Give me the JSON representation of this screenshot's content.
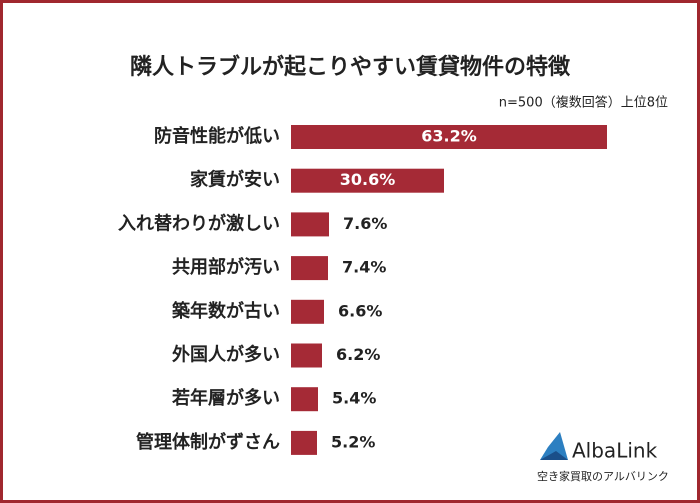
{
  "chart_data": {
    "type": "bar",
    "orientation": "horizontal",
    "title": "隣人トラブルが起こりやすい賃貸物件の特徴",
    "subtitle": "n=500（複数回答）上位8位",
    "categories": [
      "防音性能が低い",
      "家賃が安い",
      "入れ替わりが激しい",
      "共用部が汚い",
      "築年数が古い",
      "外国人が多い",
      "若年層が多い",
      "管理体制がずさん"
    ],
    "values": [
      63.2,
      30.6,
      7.6,
      7.4,
      6.6,
      6.2,
      5.4,
      5.2
    ],
    "value_labels": [
      "63.2%",
      "30.6%",
      "7.6%",
      "7.4%",
      "6.6%",
      "6.2%",
      "5.4%",
      "5.2%"
    ],
    "color": "#a52a36"
  },
  "logo": {
    "name": "AlbaLink",
    "tagline": "空き家買取のアルバリンク"
  }
}
